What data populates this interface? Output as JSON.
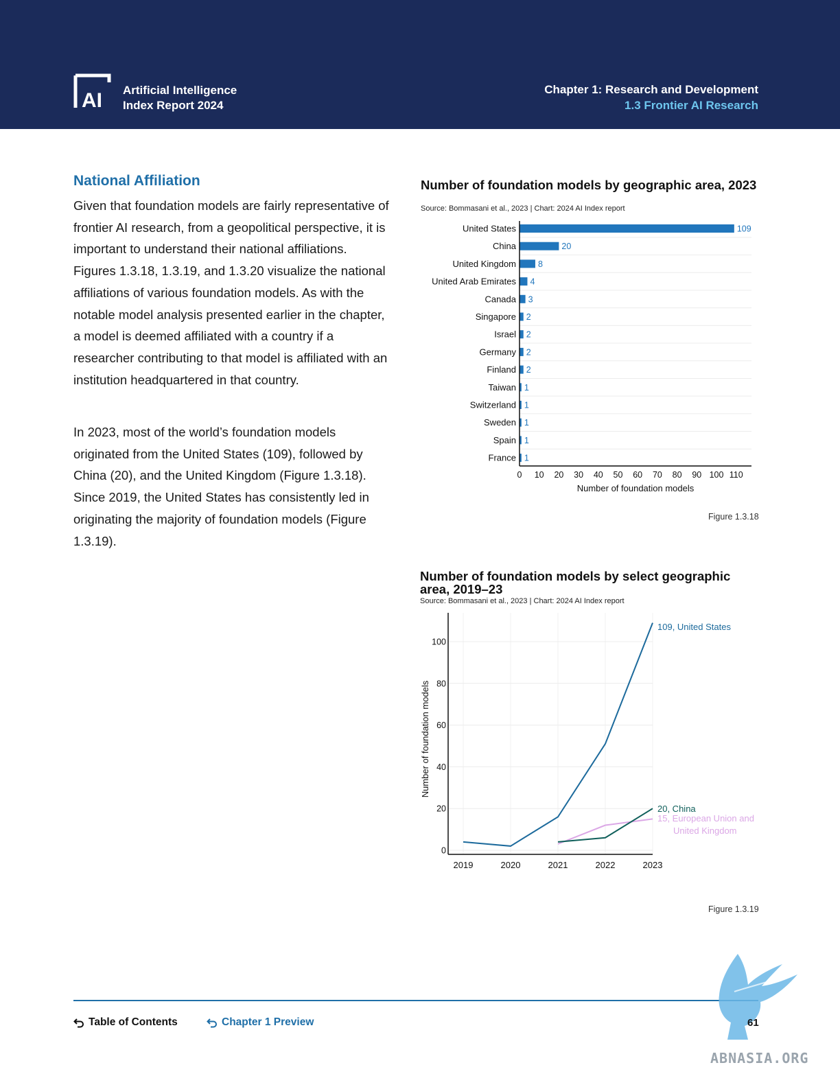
{
  "header": {
    "logo_text": "AI",
    "report_title_line1": "Artificial Intelligence",
    "report_title_line2": "Index Report 2024",
    "chapter_title": "Chapter 1: Research and Development",
    "chapter_subtitle": "1.3 Frontier AI Research"
  },
  "section": {
    "heading": "National Affiliation",
    "paragraph1": "Given that foundation models are fairly representative of frontier AI research, from a geopolitical perspective, it is important to understand their national affiliations. Figures 1.3.18, 1.3.19, and 1.3.20 visualize the national affiliations of various foundation models. As with the notable model analysis presented earlier in the chapter, a model is deemed affiliated with a country if a researcher contributing to that model is affiliated with an institution headquartered in that country.",
    "paragraph2": "In 2023, most of the world’s foundation models originated from the United States (109), followed by China (20), and the United Kingdom (Figure 1.3.18). Since 2019, the United States has consistently led in originating the majority of foundation models (Figure 1.3.19)."
  },
  "figure1": {
    "title": "Number of foundation models by geographic area, 2023",
    "source": "Source: Bommasani et al., 2023 | Chart: 2024 AI Index report",
    "label": "Figure 1.3.18"
  },
  "figure2": {
    "title": "Number of foundation models by select geographic area, 2019–23",
    "source": "Source: Bommasani et al., 2023 | Chart: 2024 AI Index report",
    "label": "Figure 1.3.19"
  },
  "chart_data": [
    {
      "type": "bar",
      "orientation": "horizontal",
      "title": "Number of foundation models by geographic area, 2023",
      "xlabel": "Number of foundation models",
      "ylabel": "",
      "xlim": [
        0,
        117
      ],
      "xticks": [
        0,
        10,
        20,
        30,
        40,
        50,
        60,
        70,
        80,
        90,
        100,
        110
      ],
      "categories": [
        "United States",
        "China",
        "United Kingdom",
        "United Arab Emirates",
        "Canada",
        "Singapore",
        "Israel",
        "Germany",
        "Finland",
        "Taiwan",
        "Switzerland",
        "Sweden",
        "Spain",
        "France"
      ],
      "values": [
        109,
        20,
        8,
        4,
        3,
        2,
        2,
        2,
        2,
        1,
        1,
        1,
        1,
        1
      ],
      "color": "#2176bc",
      "grid": true
    },
    {
      "type": "line",
      "title": "Number of foundation models by select geographic area, 2019–23",
      "xlabel": "",
      "ylabel": "Number of foundation models",
      "x": [
        2019,
        2020,
        2021,
        2022,
        2023
      ],
      "ylim": [
        0,
        115
      ],
      "yticks": [
        0,
        20,
        40,
        60,
        80,
        100
      ],
      "grid": true,
      "series": [
        {
          "name": "United States",
          "color": "#1c6a9c",
          "points": [
            [
              2019,
              4
            ],
            [
              2020,
              2
            ],
            [
              2021,
              16
            ],
            [
              2022,
              51
            ],
            [
              2023,
              109
            ]
          ],
          "end_label": "109, United States"
        },
        {
          "name": "China",
          "color": "#0f5f5a",
          "points": [
            [
              2021,
              4
            ],
            [
              2022,
              6
            ],
            [
              2023,
              20
            ]
          ],
          "end_label": "20, China"
        },
        {
          "name": "European Union and United Kingdom",
          "color": "#dba7e6",
          "points": [
            [
              2021,
              3
            ],
            [
              2022,
              12
            ],
            [
              2023,
              15
            ]
          ],
          "end_label_line1": "15, European Union and",
          "end_label_line2": "United Kingdom"
        }
      ]
    }
  ],
  "footer": {
    "toc_label": "Table of Contents",
    "chapter_preview_label": "Chapter 1 Preview",
    "page_number": "61",
    "watermark": "ABNASIA.ORG",
    "toc_color": "#111111",
    "preview_color": "#1f6fa8"
  }
}
